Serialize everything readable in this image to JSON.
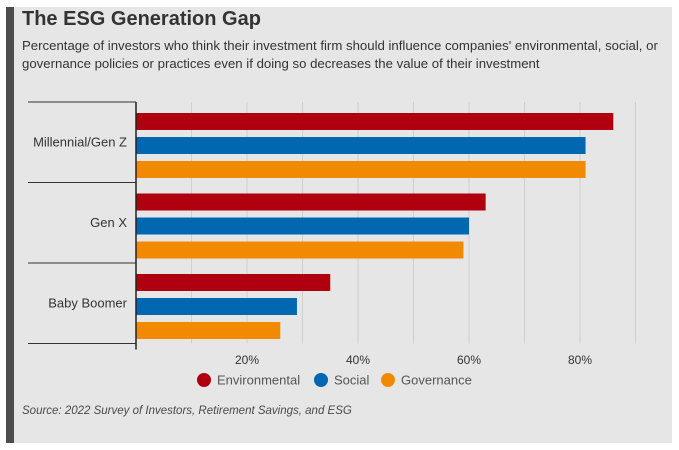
{
  "title": "The ESG Generation Gap",
  "subtitle": "Percentage of investors who think their investment firm should influence companies' environmental, social, or governance policies or practices even if doing so decreases the value of their investment",
  "source": "Source: 2022 Survey of Investors, Retirement Savings, and ESG",
  "colors": {
    "Environmental": "#b0000f",
    "Social": "#0067b0",
    "Governance": "#f28a00"
  },
  "chart_data": {
    "type": "bar",
    "orientation": "horizontal",
    "categories": [
      "Millennial/Gen Z",
      "Gen X",
      "Baby Boomer"
    ],
    "series": [
      {
        "name": "Environmental",
        "values": [
          86,
          63,
          35
        ]
      },
      {
        "name": "Social",
        "values": [
          81,
          60,
          29
        ]
      },
      {
        "name": "Governance",
        "values": [
          81,
          59,
          26
        ]
      }
    ],
    "x_ticks": [
      "20%",
      "40%",
      "60%",
      "80%"
    ],
    "xlim": [
      0,
      91
    ],
    "grid": true,
    "legend": "bottom"
  }
}
